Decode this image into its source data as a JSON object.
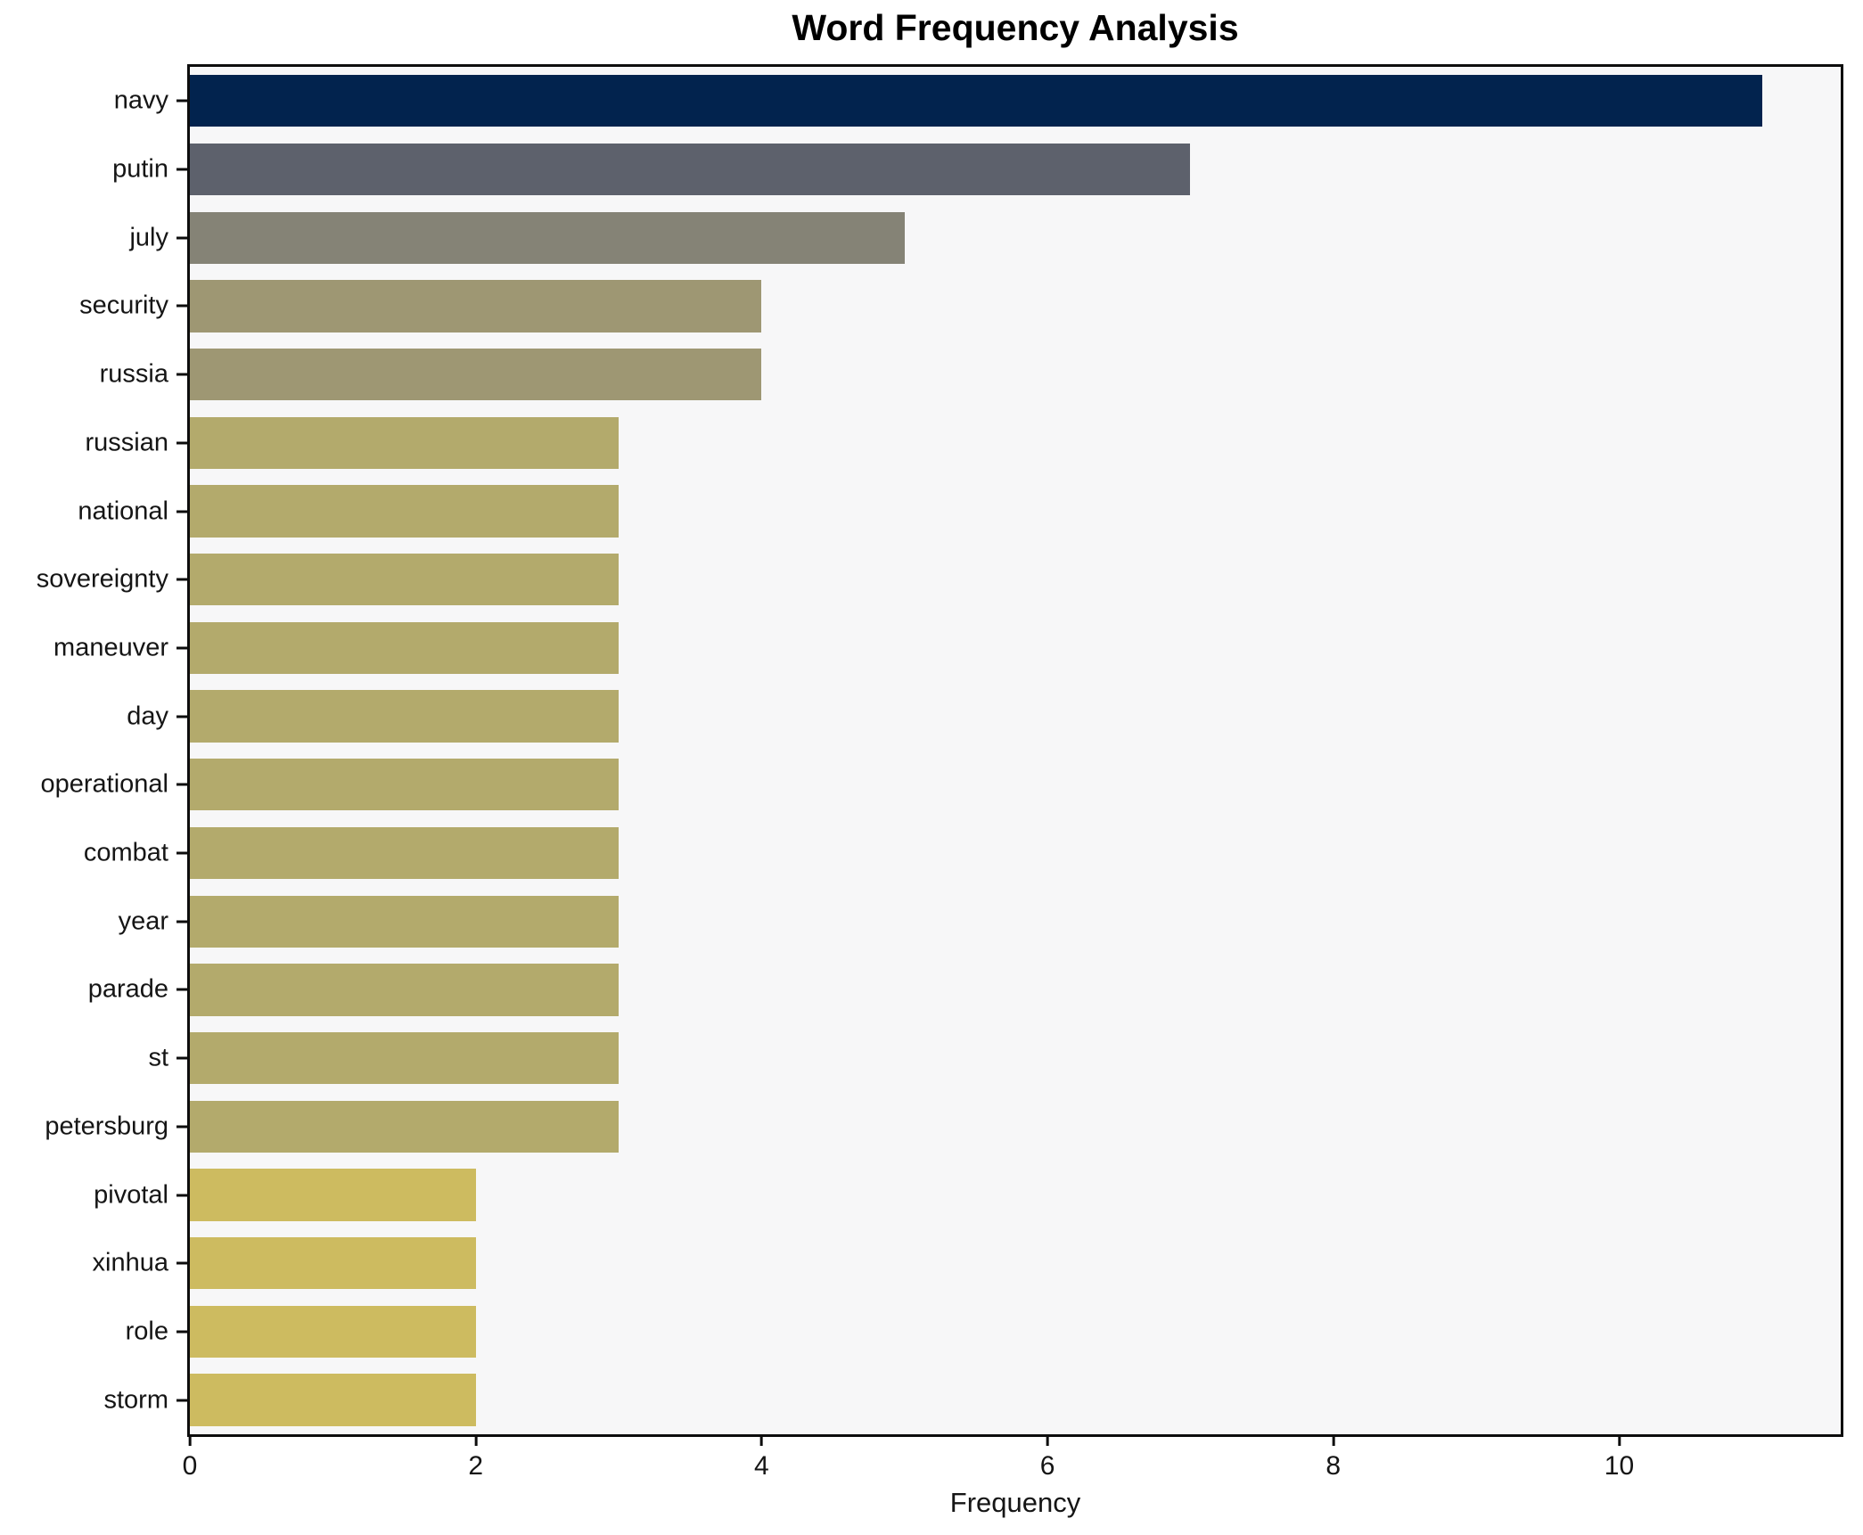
{
  "chart_data": {
    "type": "bar",
    "orientation": "horizontal",
    "title": "Word Frequency Analysis",
    "xlabel": "Frequency",
    "ylabel": "",
    "xlim": [
      0,
      11.55
    ],
    "x_ticks": [
      0,
      2,
      4,
      6,
      8,
      10
    ],
    "grid": false,
    "legend": null,
    "plot_background": "#f7f7f8",
    "spine_color": "#0d0d0d",
    "categories": [
      "navy",
      "putin",
      "july",
      "security",
      "russia",
      "russian",
      "national",
      "sovereignty",
      "maneuver",
      "day",
      "operational",
      "combat",
      "year",
      "parade",
      "st",
      "petersburg",
      "pivotal",
      "xinhua",
      "role",
      "storm"
    ],
    "values": [
      11,
      7,
      5,
      4,
      4,
      3,
      3,
      3,
      3,
      3,
      3,
      3,
      3,
      3,
      3,
      3,
      2,
      2,
      2,
      2
    ],
    "bar_colors": [
      "#02234e",
      "#5d616c",
      "#858376",
      "#9e9773",
      "#9e9773",
      "#b3aa6c",
      "#b3aa6c",
      "#b3aa6c",
      "#b3aa6c",
      "#b3aa6c",
      "#b3aa6c",
      "#b3aa6c",
      "#b3aa6c",
      "#b3aa6c",
      "#b3aa6c",
      "#b3aa6c",
      "#cdbb60",
      "#cdbb60",
      "#cdbb60",
      "#cdbb60"
    ]
  }
}
